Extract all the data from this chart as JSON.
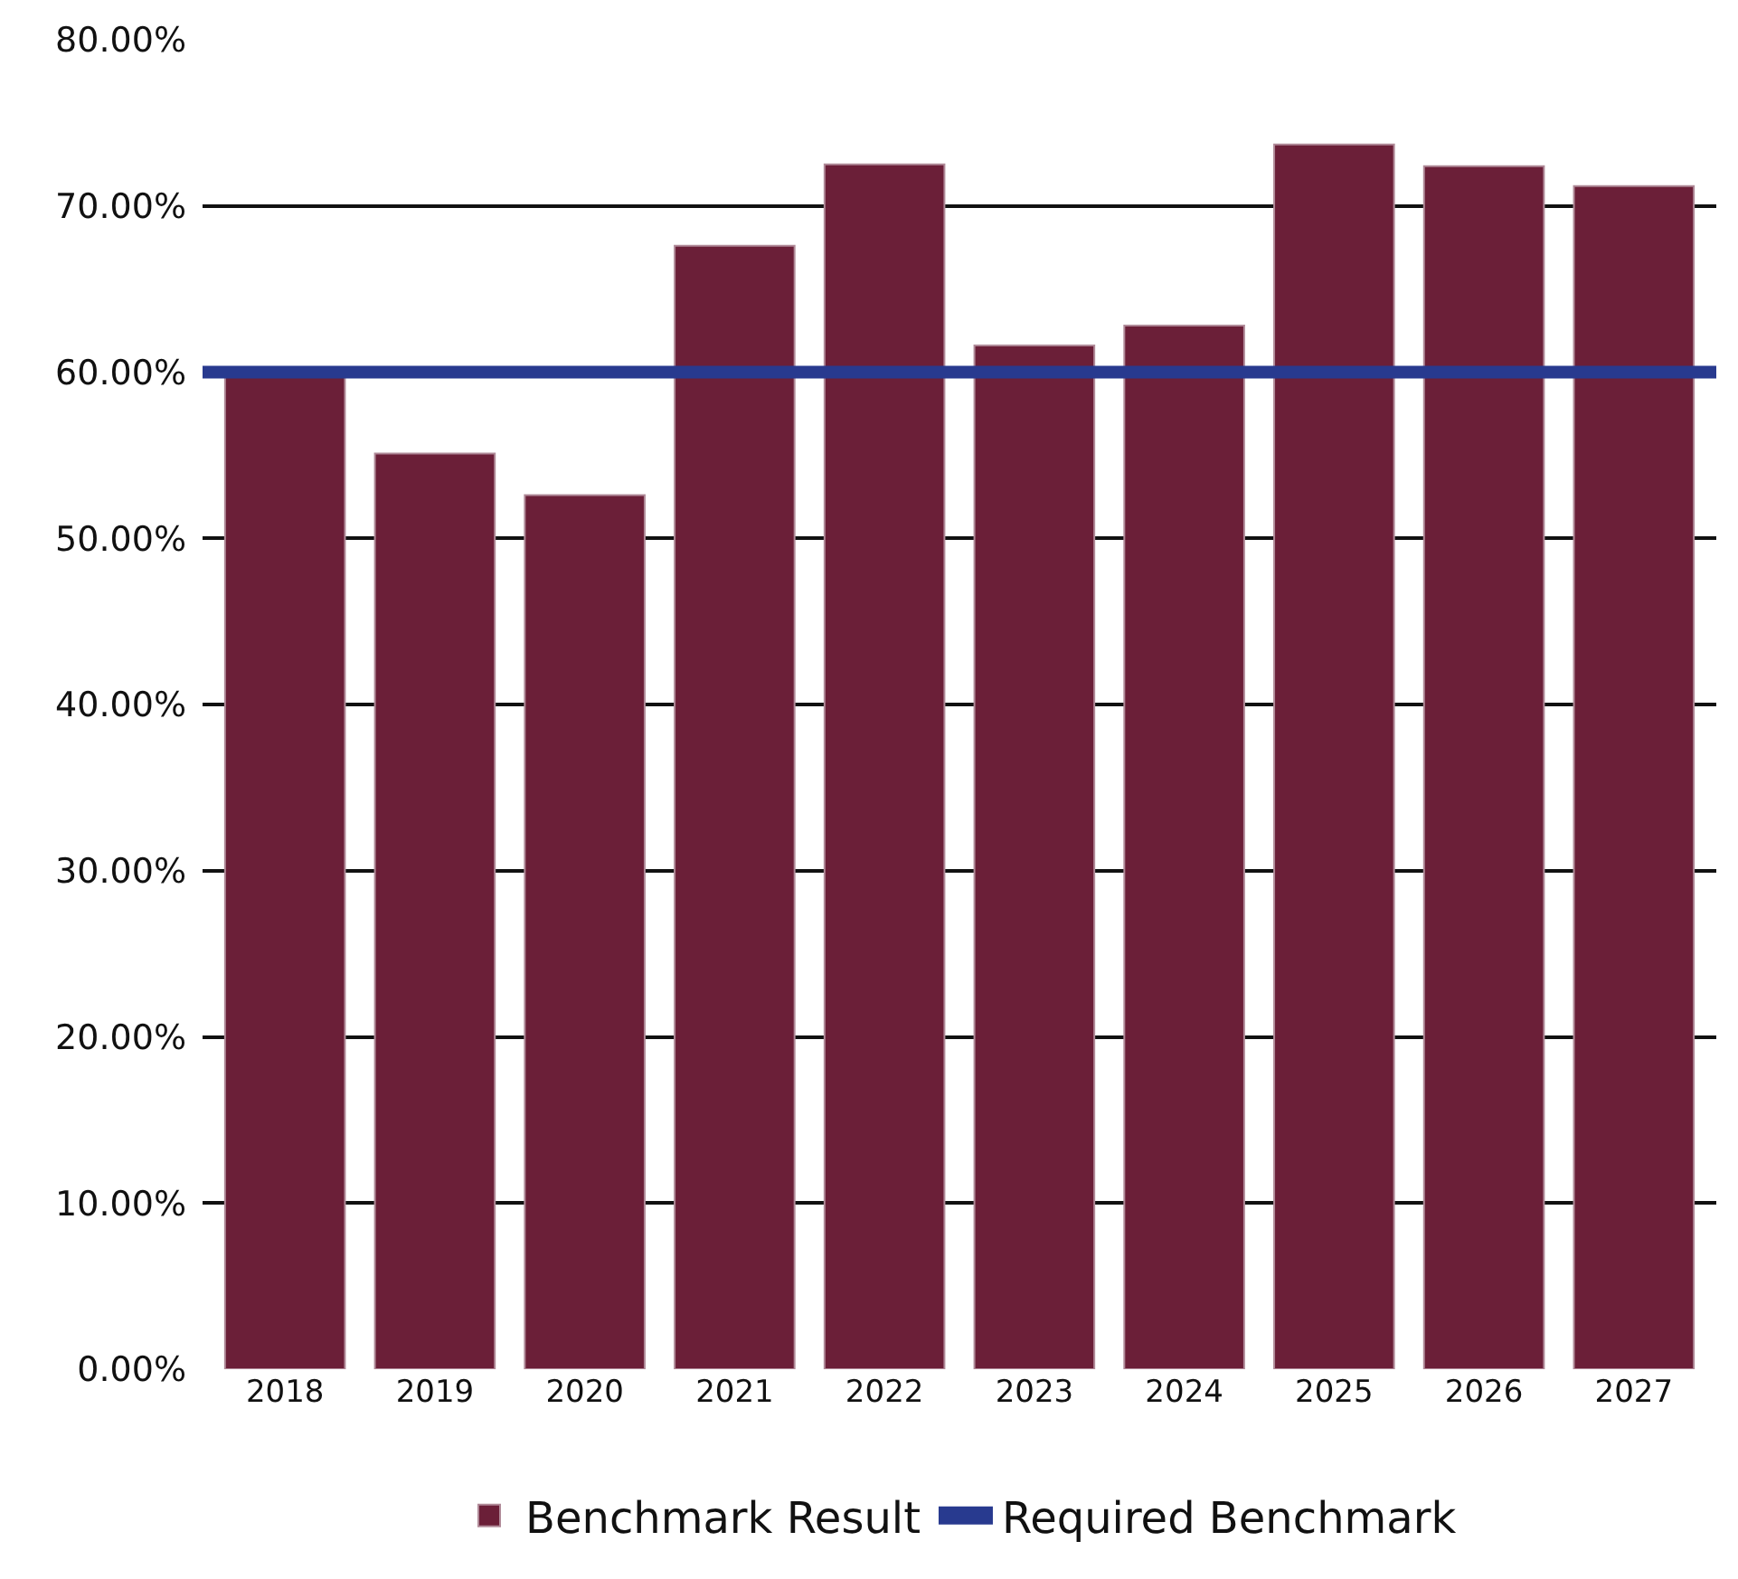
{
  "chart_data": {
    "type": "bar",
    "categories": [
      "2018",
      "2019",
      "2020",
      "2021",
      "2022",
      "2023",
      "2024",
      "2025",
      "2026",
      "2027"
    ],
    "series": [
      {
        "name": "Benchmark Result",
        "color": "#6b1f38",
        "values": [
          60.0,
          55.1,
          52.6,
          67.6,
          72.5,
          61.6,
          62.8,
          73.7,
          72.4,
          71.2
        ]
      }
    ],
    "ylim": [
      0,
      80
    ],
    "yticks": [
      {
        "value": 0,
        "label": "0.00%"
      },
      {
        "value": 10,
        "label": "10.00%"
      },
      {
        "value": 20,
        "label": "20.00%"
      },
      {
        "value": 30,
        "label": "30.00%"
      },
      {
        "value": 40,
        "label": "40.00%"
      },
      {
        "value": 50,
        "label": "50.00%"
      },
      {
        "value": 60,
        "label": "60.00%"
      },
      {
        "value": 70,
        "label": "70.00%"
      },
      {
        "value": 80,
        "label": "80.00%"
      }
    ],
    "ref_lines": [
      {
        "axis": "y",
        "value": 60,
        "label": "Required Benchmark",
        "color": "#283a8f",
        "line_style": "solid"
      }
    ],
    "grid": "y",
    "legend": "bottom"
  }
}
